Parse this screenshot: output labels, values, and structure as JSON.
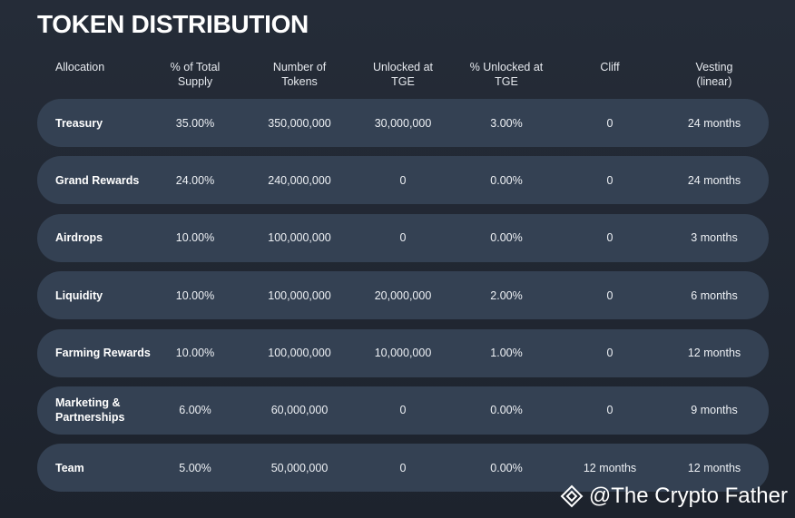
{
  "title": "TOKEN DISTRIBUTION",
  "headers": {
    "allocation": "Allocation",
    "pct_total_supply": "% of Total Supply",
    "num_tokens": "Number of Tokens",
    "unlocked_tge": "Unlocked at TGE",
    "pct_unlocked_tge": "% Unlocked at TGE",
    "cliff": "Cliff",
    "vesting": "Vesting (linear)"
  },
  "rows": [
    {
      "allocation": "Treasury",
      "pct": "35.00%",
      "tokens": "350,000,000",
      "unlocked": "30,000,000",
      "pct_unlocked": "3.00%",
      "cliff": "0",
      "vesting": "24 months"
    },
    {
      "allocation": "Grand Rewards",
      "pct": "24.00%",
      "tokens": "240,000,000",
      "unlocked": "0",
      "pct_unlocked": "0.00%",
      "cliff": "0",
      "vesting": "24 months"
    },
    {
      "allocation": "Airdrops",
      "pct": "10.00%",
      "tokens": "100,000,000",
      "unlocked": "0",
      "pct_unlocked": "0.00%",
      "cliff": "0",
      "vesting": "3 months"
    },
    {
      "allocation": "Liquidity",
      "pct": "10.00%",
      "tokens": "100,000,000",
      "unlocked": "20,000,000",
      "pct_unlocked": "2.00%",
      "cliff": "0",
      "vesting": "6 months"
    },
    {
      "allocation": "Farming Rewards",
      "pct": "10.00%",
      "tokens": "100,000,000",
      "unlocked": "10,000,000",
      "pct_unlocked": "1.00%",
      "cliff": "0",
      "vesting": "12 months"
    },
    {
      "allocation": "Marketing & Partnerships",
      "pct": "6.00%",
      "tokens": "60,000,000",
      "unlocked": "0",
      "pct_unlocked": "0.00%",
      "cliff": "0",
      "vesting": "9 months"
    },
    {
      "allocation": "Team",
      "pct": "5.00%",
      "tokens": "50,000,000",
      "unlocked": "0",
      "pct_unlocked": "0.00%",
      "cliff": "12 months",
      "vesting": "12 months"
    }
  ],
  "watermark": {
    "text": "@The Crypto Father",
    "icon": "binance-diamond-icon"
  },
  "colors": {
    "background": "#232a35",
    "row_background": "#344153",
    "text": "#ffffff"
  }
}
